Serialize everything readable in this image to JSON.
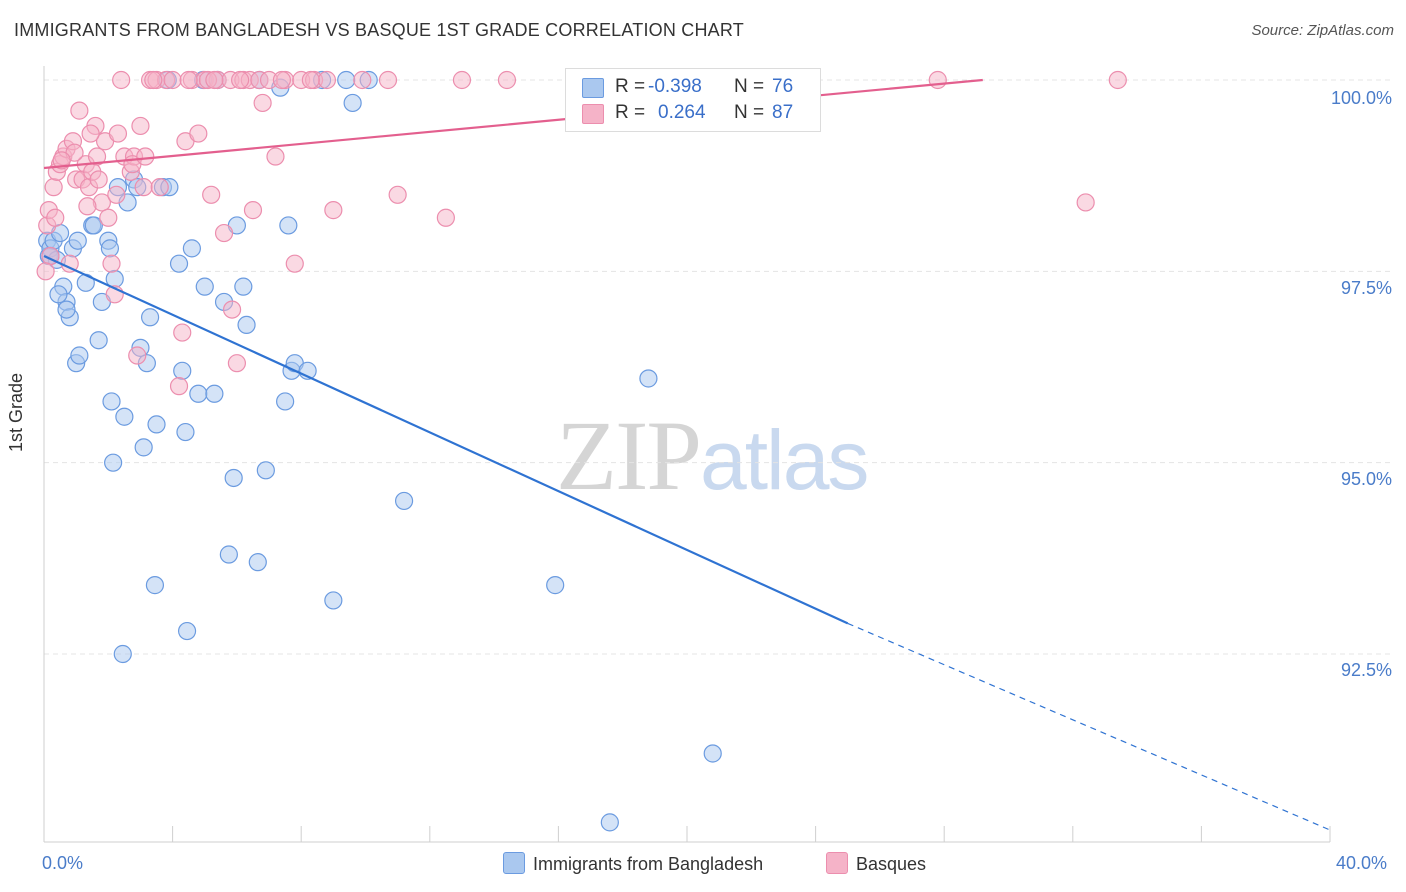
{
  "title": "IMMIGRANTS FROM BANGLADESH VS BASQUE 1ST GRADE CORRELATION CHART",
  "source": "Source: ZipAtlas.com",
  "watermark": {
    "zip": "ZIP",
    "atlas": "atlas"
  },
  "colors": {
    "blue_fill": "#aac8ef",
    "blue_stroke": "#6b9be0",
    "blue_line": "#2f73d2",
    "pink_fill": "#f5b3c8",
    "pink_stroke": "#ec8eae",
    "pink_line": "#e35f8e",
    "axis_text": "#4a7cc9",
    "grid": "#e4e4e4"
  },
  "legend": {
    "r_label": "R =",
    "n_label": "N =",
    "series": [
      {
        "r": "-0.398",
        "n": "76"
      },
      {
        "r": "0.264",
        "n": "87"
      }
    ]
  },
  "chart_data": {
    "type": "scatter",
    "xlabel": "",
    "ylabel": "1st Grade",
    "xlim": [
      0,
      40
    ],
    "ylim": [
      90.1,
      100.3
    ],
    "x_tick_labels": [
      "0.0%",
      "40.0%"
    ],
    "y_ticks": [
      92.5,
      95.0,
      97.5,
      100.0
    ],
    "y_tick_labels": [
      "92.5%",
      "95.0%",
      "97.5%",
      "100.0%"
    ],
    "grid": true,
    "legend_position": "bottom-center",
    "series": [
      {
        "name": "Immigrants from Bangladesh",
        "color": "#6b9be0",
        "points": [
          [
            0.1,
            97.9
          ],
          [
            0.15,
            97.7
          ],
          [
            0.2,
            97.8
          ],
          [
            0.3,
            97.9
          ],
          [
            0.4,
            97.65
          ],
          [
            0.5,
            98.0
          ],
          [
            0.6,
            97.3
          ],
          [
            0.7,
            97.1
          ],
          [
            0.8,
            96.9
          ],
          [
            0.9,
            97.8
          ],
          [
            1.0,
            96.3
          ],
          [
            1.1,
            96.4
          ],
          [
            1.3,
            97.35
          ],
          [
            1.5,
            98.1
          ],
          [
            1.7,
            96.6
          ],
          [
            1.8,
            97.1
          ],
          [
            2.0,
            97.9
          ],
          [
            2.1,
            95.8
          ],
          [
            2.2,
            97.4
          ],
          [
            2.3,
            98.6
          ],
          [
            2.5,
            95.6
          ],
          [
            2.6,
            98.4
          ],
          [
            2.8,
            98.7
          ],
          [
            2.9,
            98.6
          ],
          [
            3.0,
            96.5
          ],
          [
            3.2,
            96.3
          ],
          [
            3.3,
            96.9
          ],
          [
            3.5,
            95.5
          ],
          [
            3.7,
            98.6
          ],
          [
            3.9,
            98.6
          ],
          [
            4.2,
            97.6
          ],
          [
            4.3,
            96.2
          ],
          [
            4.4,
            95.4
          ],
          [
            4.6,
            97.8
          ],
          [
            4.8,
            95.9
          ],
          [
            5.0,
            97.3
          ],
          [
            5.3,
            95.9
          ],
          [
            5.4,
            100.0
          ],
          [
            5.6,
            97.1
          ],
          [
            5.9,
            94.8
          ],
          [
            6.0,
            98.1
          ],
          [
            6.2,
            97.3
          ],
          [
            6.3,
            96.8
          ],
          [
            6.7,
            100.0
          ],
          [
            6.9,
            94.9
          ],
          [
            7.5,
            95.8
          ],
          [
            7.6,
            98.1
          ],
          [
            7.7,
            96.2
          ],
          [
            7.8,
            96.3
          ],
          [
            8.2,
            96.2
          ],
          [
            9.0,
            93.2
          ],
          [
            9.4,
            100.0
          ],
          [
            9.6,
            99.7
          ],
          [
            10.1,
            100.0
          ],
          [
            11.2,
            94.5
          ],
          [
            15.9,
            93.4
          ],
          [
            18.8,
            96.1
          ],
          [
            20.8,
            91.2
          ],
          [
            17.6,
            90.3
          ],
          [
            0.2,
            97.7
          ],
          [
            0.45,
            97.2
          ],
          [
            1.05,
            97.9
          ],
          [
            1.55,
            98.1
          ],
          [
            2.05,
            97.8
          ],
          [
            3.1,
            95.2
          ],
          [
            3.45,
            93.4
          ],
          [
            4.45,
            92.8
          ],
          [
            2.45,
            92.5
          ],
          [
            5.75,
            93.8
          ],
          [
            6.65,
            93.7
          ],
          [
            3.85,
            100.0
          ],
          [
            4.95,
            100.0
          ],
          [
            7.35,
            99.9
          ],
          [
            8.65,
            100.0
          ],
          [
            2.15,
            95.0
          ],
          [
            0.7,
            97.0
          ]
        ],
        "trend": {
          "x0": 0,
          "y0": 97.7,
          "x1": 25.0,
          "y1": 92.9,
          "dash_to_x": 40,
          "dash_to_y": 90.2
        }
      },
      {
        "name": "Basques",
        "color": "#ec8eae",
        "points": [
          [
            0.1,
            98.1
          ],
          [
            0.15,
            98.3
          ],
          [
            0.2,
            97.7
          ],
          [
            0.3,
            98.6
          ],
          [
            0.4,
            98.8
          ],
          [
            0.5,
            98.9
          ],
          [
            0.6,
            99.0
          ],
          [
            0.7,
            99.1
          ],
          [
            0.8,
            97.6
          ],
          [
            0.9,
            99.2
          ],
          [
            1.0,
            98.7
          ],
          [
            1.1,
            99.6
          ],
          [
            1.2,
            98.7
          ],
          [
            1.3,
            98.9
          ],
          [
            1.4,
            98.6
          ],
          [
            1.5,
            98.8
          ],
          [
            1.6,
            99.4
          ],
          [
            1.7,
            98.7
          ],
          [
            1.8,
            98.4
          ],
          [
            1.9,
            99.2
          ],
          [
            2.0,
            98.2
          ],
          [
            2.1,
            97.6
          ],
          [
            2.2,
            97.2
          ],
          [
            2.3,
            99.3
          ],
          [
            2.4,
            100.0
          ],
          [
            2.5,
            99.0
          ],
          [
            2.7,
            98.8
          ],
          [
            2.8,
            99.0
          ],
          [
            2.9,
            96.4
          ],
          [
            3.0,
            99.4
          ],
          [
            3.1,
            98.6
          ],
          [
            3.3,
            100.0
          ],
          [
            3.5,
            100.0
          ],
          [
            3.6,
            98.6
          ],
          [
            3.8,
            100.0
          ],
          [
            4.0,
            100.0
          ],
          [
            4.2,
            96.0
          ],
          [
            4.3,
            96.7
          ],
          [
            4.4,
            99.2
          ],
          [
            4.6,
            100.0
          ],
          [
            4.8,
            99.3
          ],
          [
            5.0,
            100.0
          ],
          [
            5.2,
            98.5
          ],
          [
            5.4,
            100.0
          ],
          [
            5.6,
            98.0
          ],
          [
            5.8,
            100.0
          ],
          [
            6.0,
            96.3
          ],
          [
            6.2,
            100.0
          ],
          [
            6.4,
            100.0
          ],
          [
            6.5,
            98.3
          ],
          [
            6.7,
            100.0
          ],
          [
            6.8,
            99.7
          ],
          [
            7.0,
            100.0
          ],
          [
            7.2,
            99.0
          ],
          [
            7.5,
            100.0
          ],
          [
            7.8,
            97.6
          ],
          [
            8.0,
            100.0
          ],
          [
            8.4,
            100.0
          ],
          [
            8.8,
            100.0
          ],
          [
            9.0,
            98.3
          ],
          [
            11.0,
            98.5
          ],
          [
            12.5,
            98.2
          ],
          [
            13.0,
            100.0
          ],
          [
            14.4,
            100.0
          ],
          [
            0.05,
            97.5
          ],
          [
            1.65,
            99.0
          ],
          [
            2.75,
            98.9
          ],
          [
            10.7,
            100.0
          ],
          [
            9.9,
            100.0
          ],
          [
            8.3,
            100.0
          ],
          [
            27.8,
            100.0
          ],
          [
            32.4,
            98.4
          ],
          [
            33.4,
            100.0
          ],
          [
            5.1,
            100.0
          ],
          [
            6.1,
            100.0
          ],
          [
            3.4,
            100.0
          ],
          [
            4.5,
            100.0
          ],
          [
            5.3,
            100.0
          ],
          [
            7.4,
            100.0
          ],
          [
            0.35,
            98.2
          ],
          [
            0.95,
            99.05
          ],
          [
            1.35,
            98.35
          ],
          [
            2.25,
            98.5
          ],
          [
            3.15,
            99.0
          ],
          [
            5.85,
            97.0
          ],
          [
            0.55,
            98.95
          ],
          [
            1.45,
            99.3
          ]
        ],
        "trend": {
          "x0": 0,
          "y0": 98.85,
          "x1": 29.2,
          "y1": 100.0
        }
      }
    ]
  }
}
